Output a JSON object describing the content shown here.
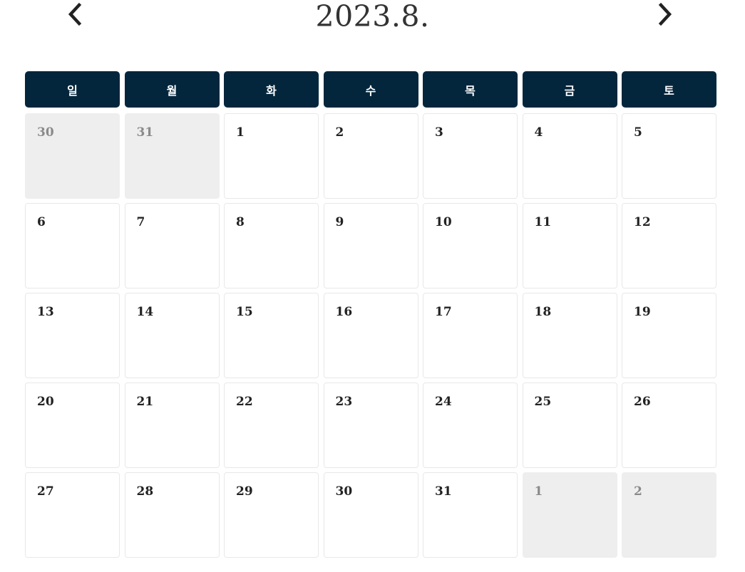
{
  "calendar": {
    "title": "2023.8.",
    "prev_icon": "chevron-left-icon",
    "next_icon": "chevron-right-icon",
    "weekdays": [
      "일",
      "월",
      "화",
      "수",
      "목",
      "금",
      "토"
    ],
    "colors": {
      "header_bg": "#04263c",
      "other_month_bg": "#eeeeee",
      "other_month_text": "#8a8a8a"
    },
    "weeks": [
      [
        {
          "day": "30",
          "current_month": false
        },
        {
          "day": "31",
          "current_month": false
        },
        {
          "day": "1",
          "current_month": true
        },
        {
          "day": "2",
          "current_month": true
        },
        {
          "day": "3",
          "current_month": true
        },
        {
          "day": "4",
          "current_month": true
        },
        {
          "day": "5",
          "current_month": true
        }
      ],
      [
        {
          "day": "6",
          "current_month": true
        },
        {
          "day": "7",
          "current_month": true
        },
        {
          "day": "8",
          "current_month": true
        },
        {
          "day": "9",
          "current_month": true
        },
        {
          "day": "10",
          "current_month": true
        },
        {
          "day": "11",
          "current_month": true
        },
        {
          "day": "12",
          "current_month": true
        }
      ],
      [
        {
          "day": "13",
          "current_month": true
        },
        {
          "day": "14",
          "current_month": true
        },
        {
          "day": "15",
          "current_month": true
        },
        {
          "day": "16",
          "current_month": true
        },
        {
          "day": "17",
          "current_month": true
        },
        {
          "day": "18",
          "current_month": true
        },
        {
          "day": "19",
          "current_month": true
        }
      ],
      [
        {
          "day": "20",
          "current_month": true
        },
        {
          "day": "21",
          "current_month": true
        },
        {
          "day": "22",
          "current_month": true
        },
        {
          "day": "23",
          "current_month": true
        },
        {
          "day": "24",
          "current_month": true
        },
        {
          "day": "25",
          "current_month": true
        },
        {
          "day": "26",
          "current_month": true
        }
      ],
      [
        {
          "day": "27",
          "current_month": true
        },
        {
          "day": "28",
          "current_month": true
        },
        {
          "day": "29",
          "current_month": true
        },
        {
          "day": "30",
          "current_month": true
        },
        {
          "day": "31",
          "current_month": true
        },
        {
          "day": "1",
          "current_month": false
        },
        {
          "day": "2",
          "current_month": false
        }
      ]
    ]
  }
}
